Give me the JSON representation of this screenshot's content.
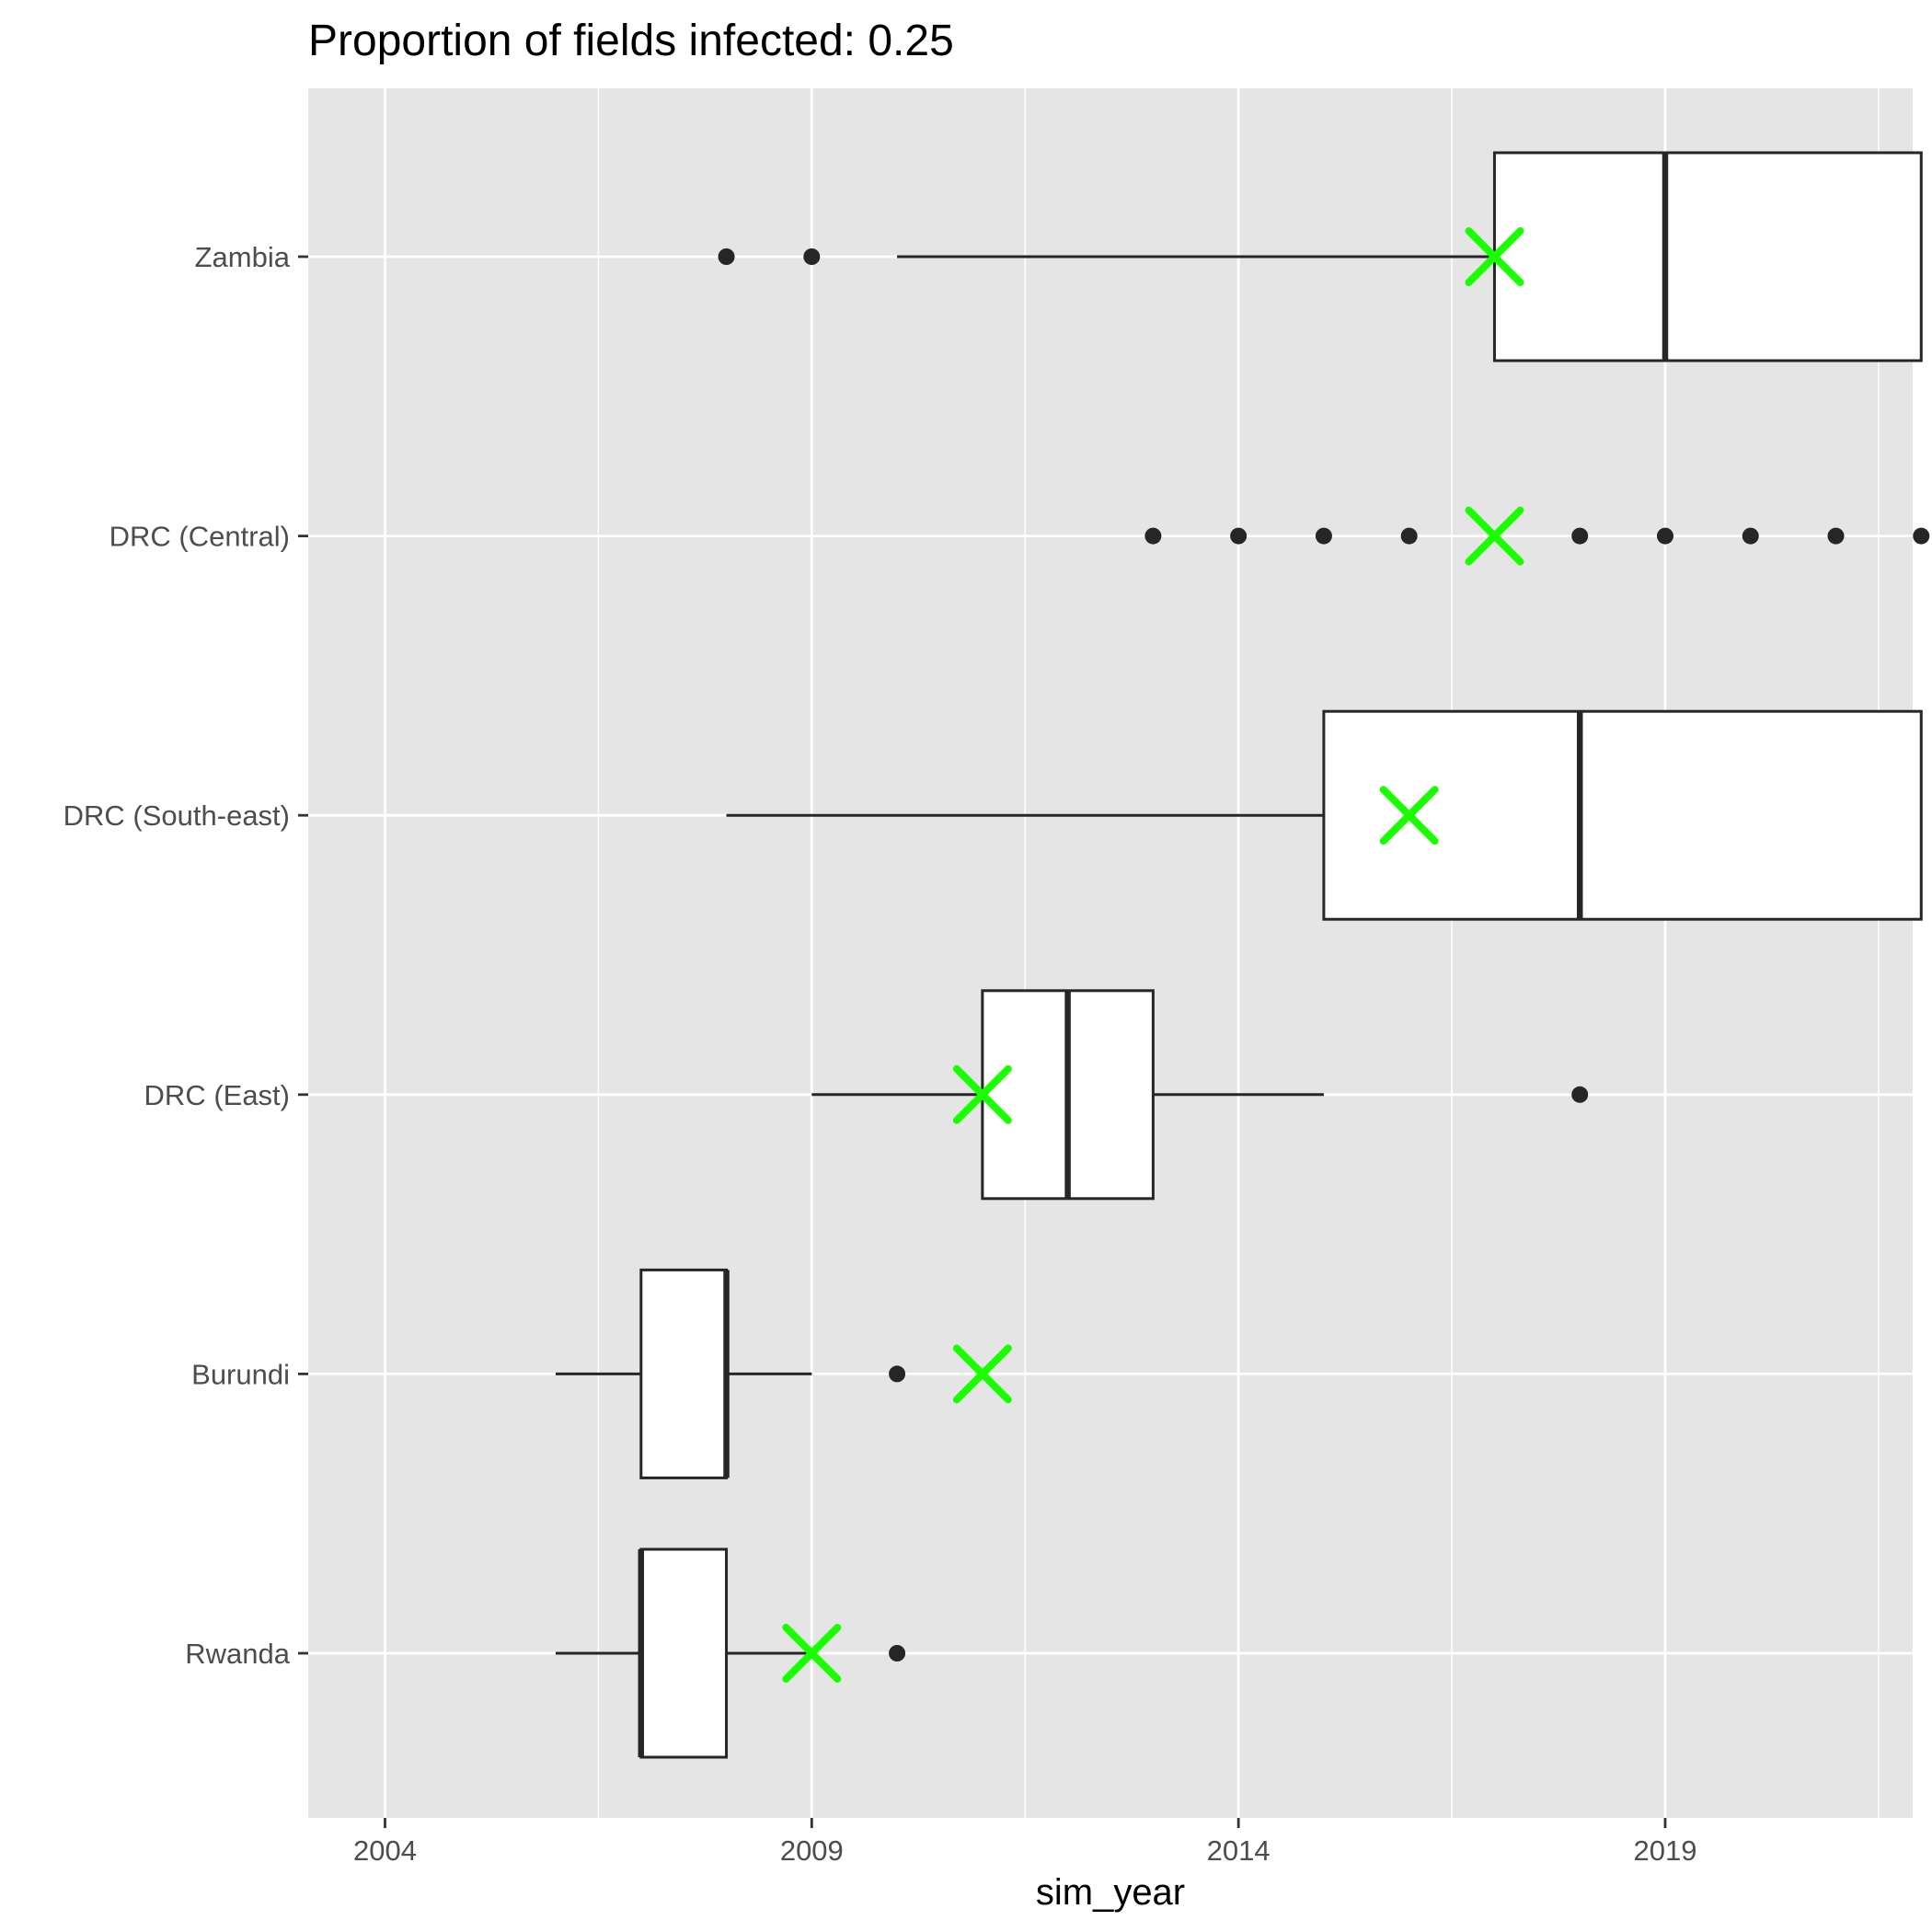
{
  "chart_data": {
    "type": "boxplot",
    "title": "Proportion of fields infected: 0.25",
    "xlabel": "sim_year",
    "ylabel": "",
    "xlim": [
      2003.1,
      2021.9
    ],
    "x_ticks": [
      2004,
      2009,
      2014,
      2019
    ],
    "categories": [
      "Zambia",
      "DRC (Central)",
      "DRC (South-east)",
      "DRC (East)",
      "Burundi",
      "Rwanda"
    ],
    "boxes": [
      {
        "category": "Zambia",
        "whisker_low": 2010,
        "q1": 2017,
        "median": 2019,
        "q3": 2022,
        "whisker_high": 2022,
        "outliers": [
          2008,
          2009
        ],
        "observed": 2017
      },
      {
        "category": "DRC (Central)",
        "whisker_low": 2017,
        "q1": 2017,
        "median": 2017,
        "q3": 2017,
        "whisker_high": 2017,
        "outliers": [
          2013,
          2014,
          2015,
          2016,
          2018,
          2019,
          2020,
          2021,
          2022
        ],
        "observed": 2017
      },
      {
        "category": "DRC (South-east)",
        "whisker_low": 2008,
        "q1": 2015,
        "median": 2018,
        "q3": 2022,
        "whisker_high": 2022,
        "outliers": [],
        "observed": 2016
      },
      {
        "category": "DRC (East)",
        "whisker_low": 2009,
        "q1": 2011,
        "median": 2012,
        "q3": 2013,
        "whisker_high": 2015,
        "outliers": [
          2018
        ],
        "observed": 2011
      },
      {
        "category": "Burundi",
        "whisker_low": 2006,
        "q1": 2007,
        "median": 2008,
        "q3": 2008,
        "whisker_high": 2009,
        "outliers": [
          2010
        ],
        "observed": 2011
      },
      {
        "category": "Rwanda",
        "whisker_low": 2006,
        "q1": 2007,
        "median": 2007,
        "q3": 2008,
        "whisker_high": 2009,
        "outliers": [
          2010
        ],
        "observed": 2009
      }
    ],
    "grid": true,
    "legend": "none",
    "colors": {
      "panel_background": "#e5e5e5",
      "grid": "#ffffff",
      "box_fill": "#ffffff",
      "box_stroke": "#262626",
      "outlier": "#262626",
      "observed_marker": "#1aff00"
    }
  }
}
